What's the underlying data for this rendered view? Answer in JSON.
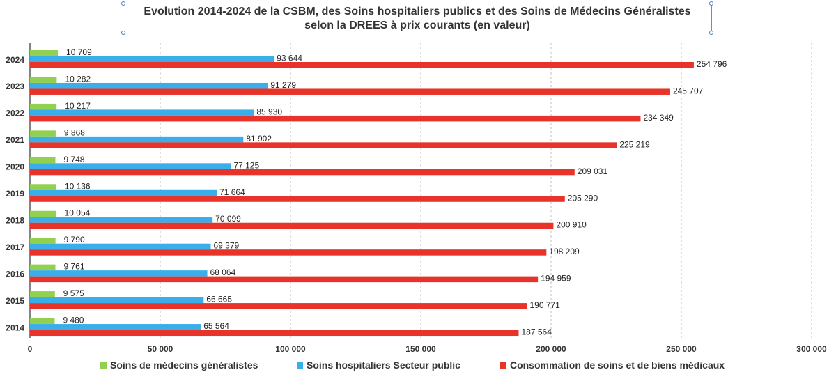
{
  "chart_data": {
    "type": "bar",
    "orientation": "horizontal",
    "title_line1": "Evolution 2014-2024 de la CSBM, des Soins hospitaliers publics et des Soins de Médecins Généralistes",
    "title_line2": "selon la DREES à prix courants (en valeur)",
    "categories": [
      "2024",
      "2023",
      "2022",
      "2021",
      "2020",
      "2019",
      "2018",
      "2017",
      "2016",
      "2015",
      "2014"
    ],
    "series": [
      {
        "name": "Soins de médecins généralistes",
        "color": "#92d050",
        "values": [
          10709,
          10282,
          10217,
          9868,
          9748,
          10136,
          10054,
          9790,
          9761,
          9575,
          9480
        ],
        "labels": [
          "10 709",
          "10 282",
          "10 217",
          "9 868",
          "9 748",
          "10 136",
          "10 054",
          "9 790",
          "9 761",
          "9 575",
          "9 480"
        ]
      },
      {
        "name": "Soins hospitaliers Secteur public",
        "color": "#3aaeea",
        "values": [
          93644,
          91279,
          85930,
          81902,
          77125,
          71664,
          70099,
          69379,
          68064,
          66665,
          65564
        ],
        "labels": [
          "93 644",
          "91 279",
          "85 930",
          "81 902",
          "77 125",
          "71 664",
          "70 099",
          "69 379",
          "68 064",
          "66 665",
          "65 564"
        ]
      },
      {
        "name": "Consommation de soins et de biens médicaux",
        "color": "#e8332a",
        "values": [
          254796,
          245707,
          234349,
          225219,
          209031,
          205290,
          200910,
          198209,
          194959,
          190771,
          187564
        ],
        "labels": [
          "254 796",
          "245 707",
          "234 349",
          "225 219",
          "209 031",
          "205 290",
          "200 910",
          "198 209",
          "194 959",
          "190 771",
          "187 564"
        ]
      }
    ],
    "xlim": [
      0,
      300000
    ],
    "xticks": [
      0,
      50000,
      100000,
      150000,
      200000,
      250000,
      300000
    ],
    "xtick_labels": [
      "0",
      "50 000",
      "100 000",
      "150 000",
      "200 000",
      "250 000",
      "300 000"
    ],
    "grid": true,
    "legend_position": "bottom"
  }
}
